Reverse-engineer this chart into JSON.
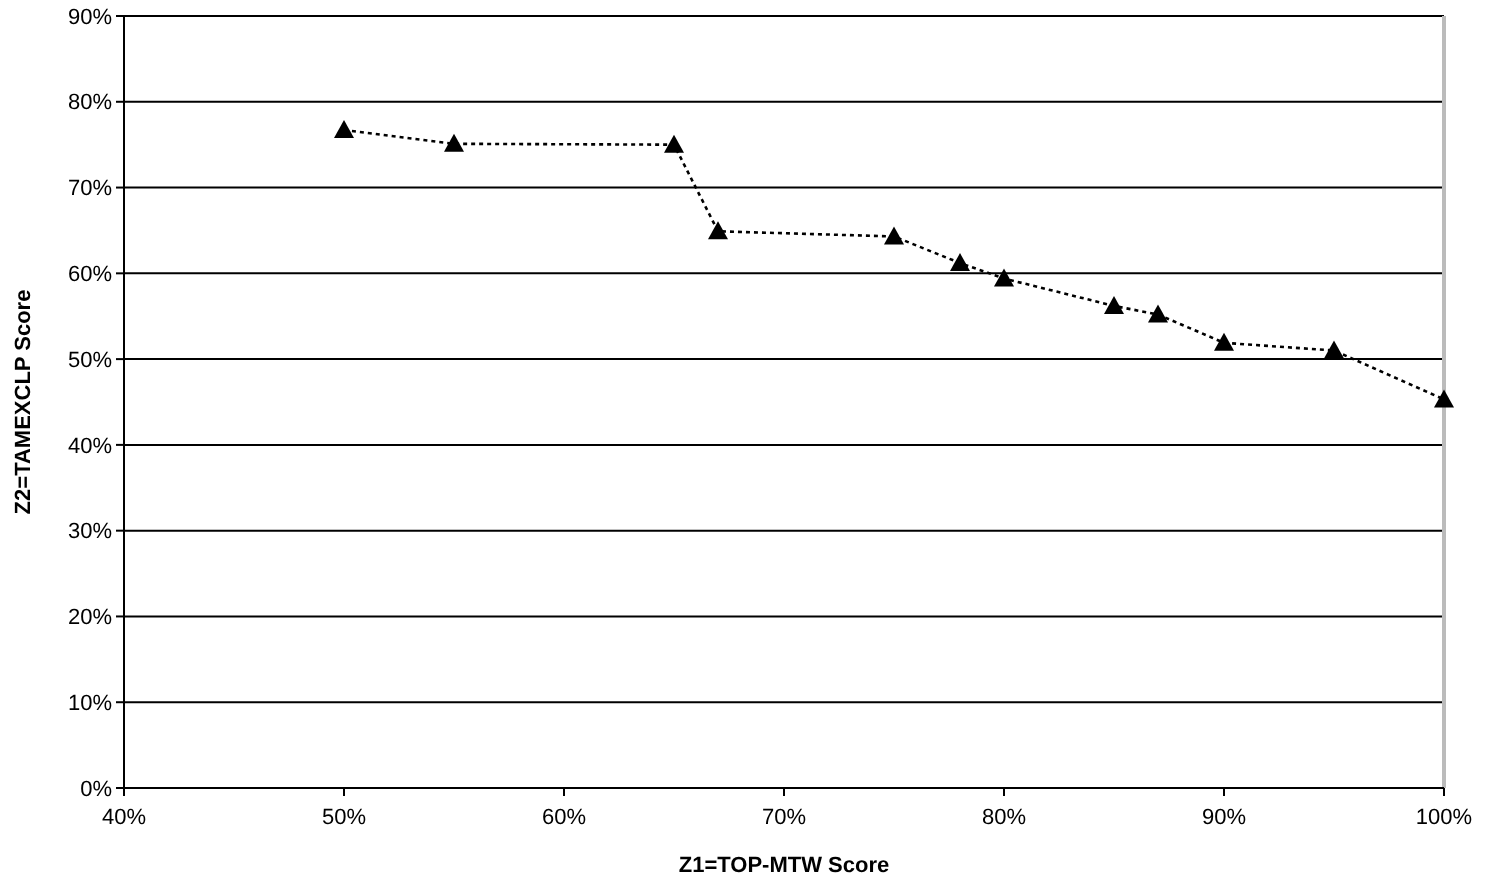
{
  "chart_data": {
    "type": "line",
    "xlabel": "Z1=TOP-MTW Score",
    "ylabel": "Z2=TAMEXCLP Score",
    "series": [
      {
        "color": "#000000",
        "x": [
          50,
          55,
          65,
          67,
          75,
          78,
          80,
          85,
          87,
          90,
          95,
          100
        ],
        "values": [
          76.7,
          75.1,
          75,
          64.9,
          64.3,
          61.2,
          59.4,
          56.2,
          55.2,
          51.9,
          51,
          45.3
        ]
      }
    ],
    "xlim": [
      40,
      100
    ],
    "xticks": [
      {
        "value": 40,
        "label": "40%"
      },
      {
        "value": 50,
        "label": "50%"
      },
      {
        "value": 60,
        "label": "60%"
      },
      {
        "value": 70,
        "label": "70%"
      },
      {
        "value": 80,
        "label": "80%"
      },
      {
        "value": 90,
        "label": "90%"
      },
      {
        "value": 100,
        "label": "100%"
      }
    ],
    "ylim": [
      0,
      90
    ],
    "yticks": [
      {
        "value": 0,
        "label": "0%"
      },
      {
        "value": 10,
        "label": "10%"
      },
      {
        "value": 20,
        "label": "20%"
      },
      {
        "value": 30,
        "label": "30%"
      },
      {
        "value": 40,
        "label": "40%"
      },
      {
        "value": 50,
        "label": "50%"
      },
      {
        "value": 60,
        "label": "60%"
      },
      {
        "value": 70,
        "label": "70%"
      },
      {
        "value": 80,
        "label": "80%"
      },
      {
        "value": 90,
        "label": "90%"
      }
    ],
    "grid": "y",
    "marker": "triangle",
    "line_style": "dotted"
  }
}
